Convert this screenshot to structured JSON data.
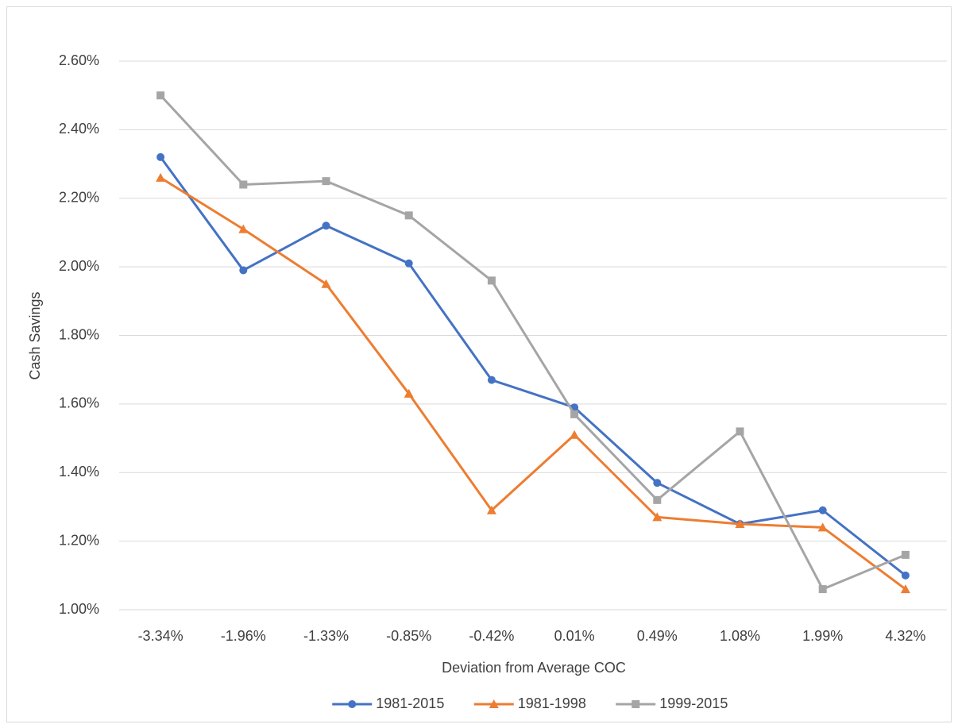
{
  "chart_data": {
    "type": "line",
    "x_label": "Deviation from Average COC",
    "y_label": "Cash Savings",
    "categories": [
      "-3.34%",
      "-1.96%",
      "-1.33%",
      "-0.85%",
      "-0.42%",
      "0.01%",
      "0.49%",
      "1.08%",
      "1.99%",
      "4.32%"
    ],
    "series": [
      {
        "name": "1981-2015",
        "color": "#4472c4",
        "marker": "circle",
        "values": [
          2.32,
          1.99,
          2.12,
          2.01,
          1.67,
          1.59,
          1.37,
          1.25,
          1.29,
          1.1
        ]
      },
      {
        "name": "1981-1998",
        "color": "#ed7d31",
        "marker": "triangle",
        "values": [
          2.26,
          2.11,
          1.95,
          1.63,
          1.29,
          1.51,
          1.27,
          1.25,
          1.24,
          1.06
        ]
      },
      {
        "name": "1999-2015",
        "color": "#a5a5a5",
        "marker": "square",
        "values": [
          2.5,
          2.24,
          2.25,
          2.15,
          1.96,
          1.57,
          1.32,
          1.52,
          1.06,
          1.16
        ]
      }
    ],
    "ylim": [
      1.0,
      2.6
    ],
    "yticks": [
      {
        "value": 1.0,
        "label": "1.00%"
      },
      {
        "value": 1.2,
        "label": "1.20%"
      },
      {
        "value": 1.4,
        "label": "1.40%"
      },
      {
        "value": 1.6,
        "label": "1.60%"
      },
      {
        "value": 1.8,
        "label": "1.80%"
      },
      {
        "value": 2.0,
        "label": "2.00%"
      },
      {
        "value": 2.2,
        "label": "2.20%"
      },
      {
        "value": 2.4,
        "label": "2.40%"
      },
      {
        "value": 2.6,
        "label": "2.60%"
      }
    ],
    "grid": true,
    "legend": "bottom"
  }
}
